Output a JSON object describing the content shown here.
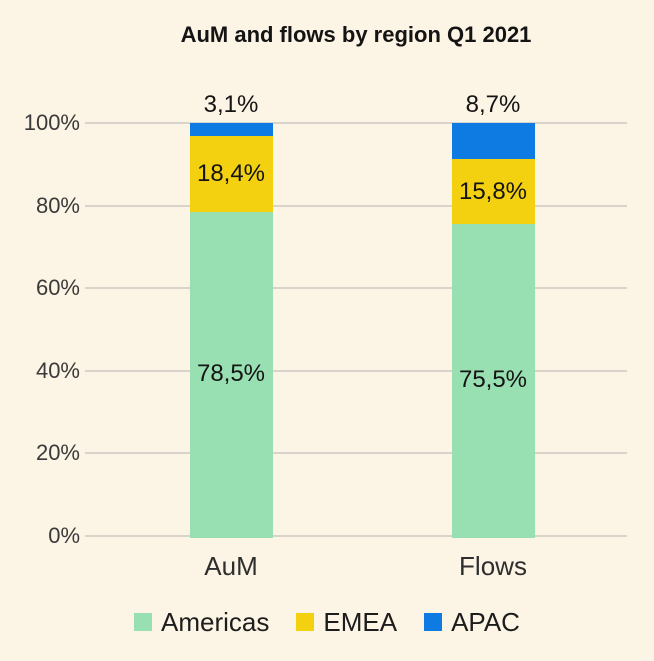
{
  "chart_data": {
    "type": "bar",
    "stacked": true,
    "title": "AuM and flows by region Q1 2021",
    "categories": [
      "AuM",
      "Flows"
    ],
    "series": [
      {
        "name": "Americas",
        "color": "#98dfb2",
        "values": [
          78.5,
          75.5
        ],
        "labels": [
          "78,5%",
          "75,5%"
        ]
      },
      {
        "name": "EMEA",
        "color": "#f4d110",
        "values": [
          18.4,
          15.8
        ],
        "labels": [
          "18,4%",
          "15,8%"
        ]
      },
      {
        "name": "APAC",
        "color": "#0e7be2",
        "values": [
          3.1,
          8.7
        ],
        "labels": [
          "3,1%",
          "8,7%"
        ]
      }
    ],
    "ylim": [
      0,
      100
    ],
    "yticks": [
      {
        "value": 0,
        "label": "0%"
      },
      {
        "value": 20,
        "label": "20%"
      },
      {
        "value": 40,
        "label": "40%"
      },
      {
        "value": 60,
        "label": "60%"
      },
      {
        "value": 80,
        "label": "80%"
      },
      {
        "value": 100,
        "label": "100%"
      }
    ],
    "grid": true,
    "legend_position": "bottom",
    "background_color": "#fcf4e4",
    "gridline_color": "#d8d4cc"
  }
}
